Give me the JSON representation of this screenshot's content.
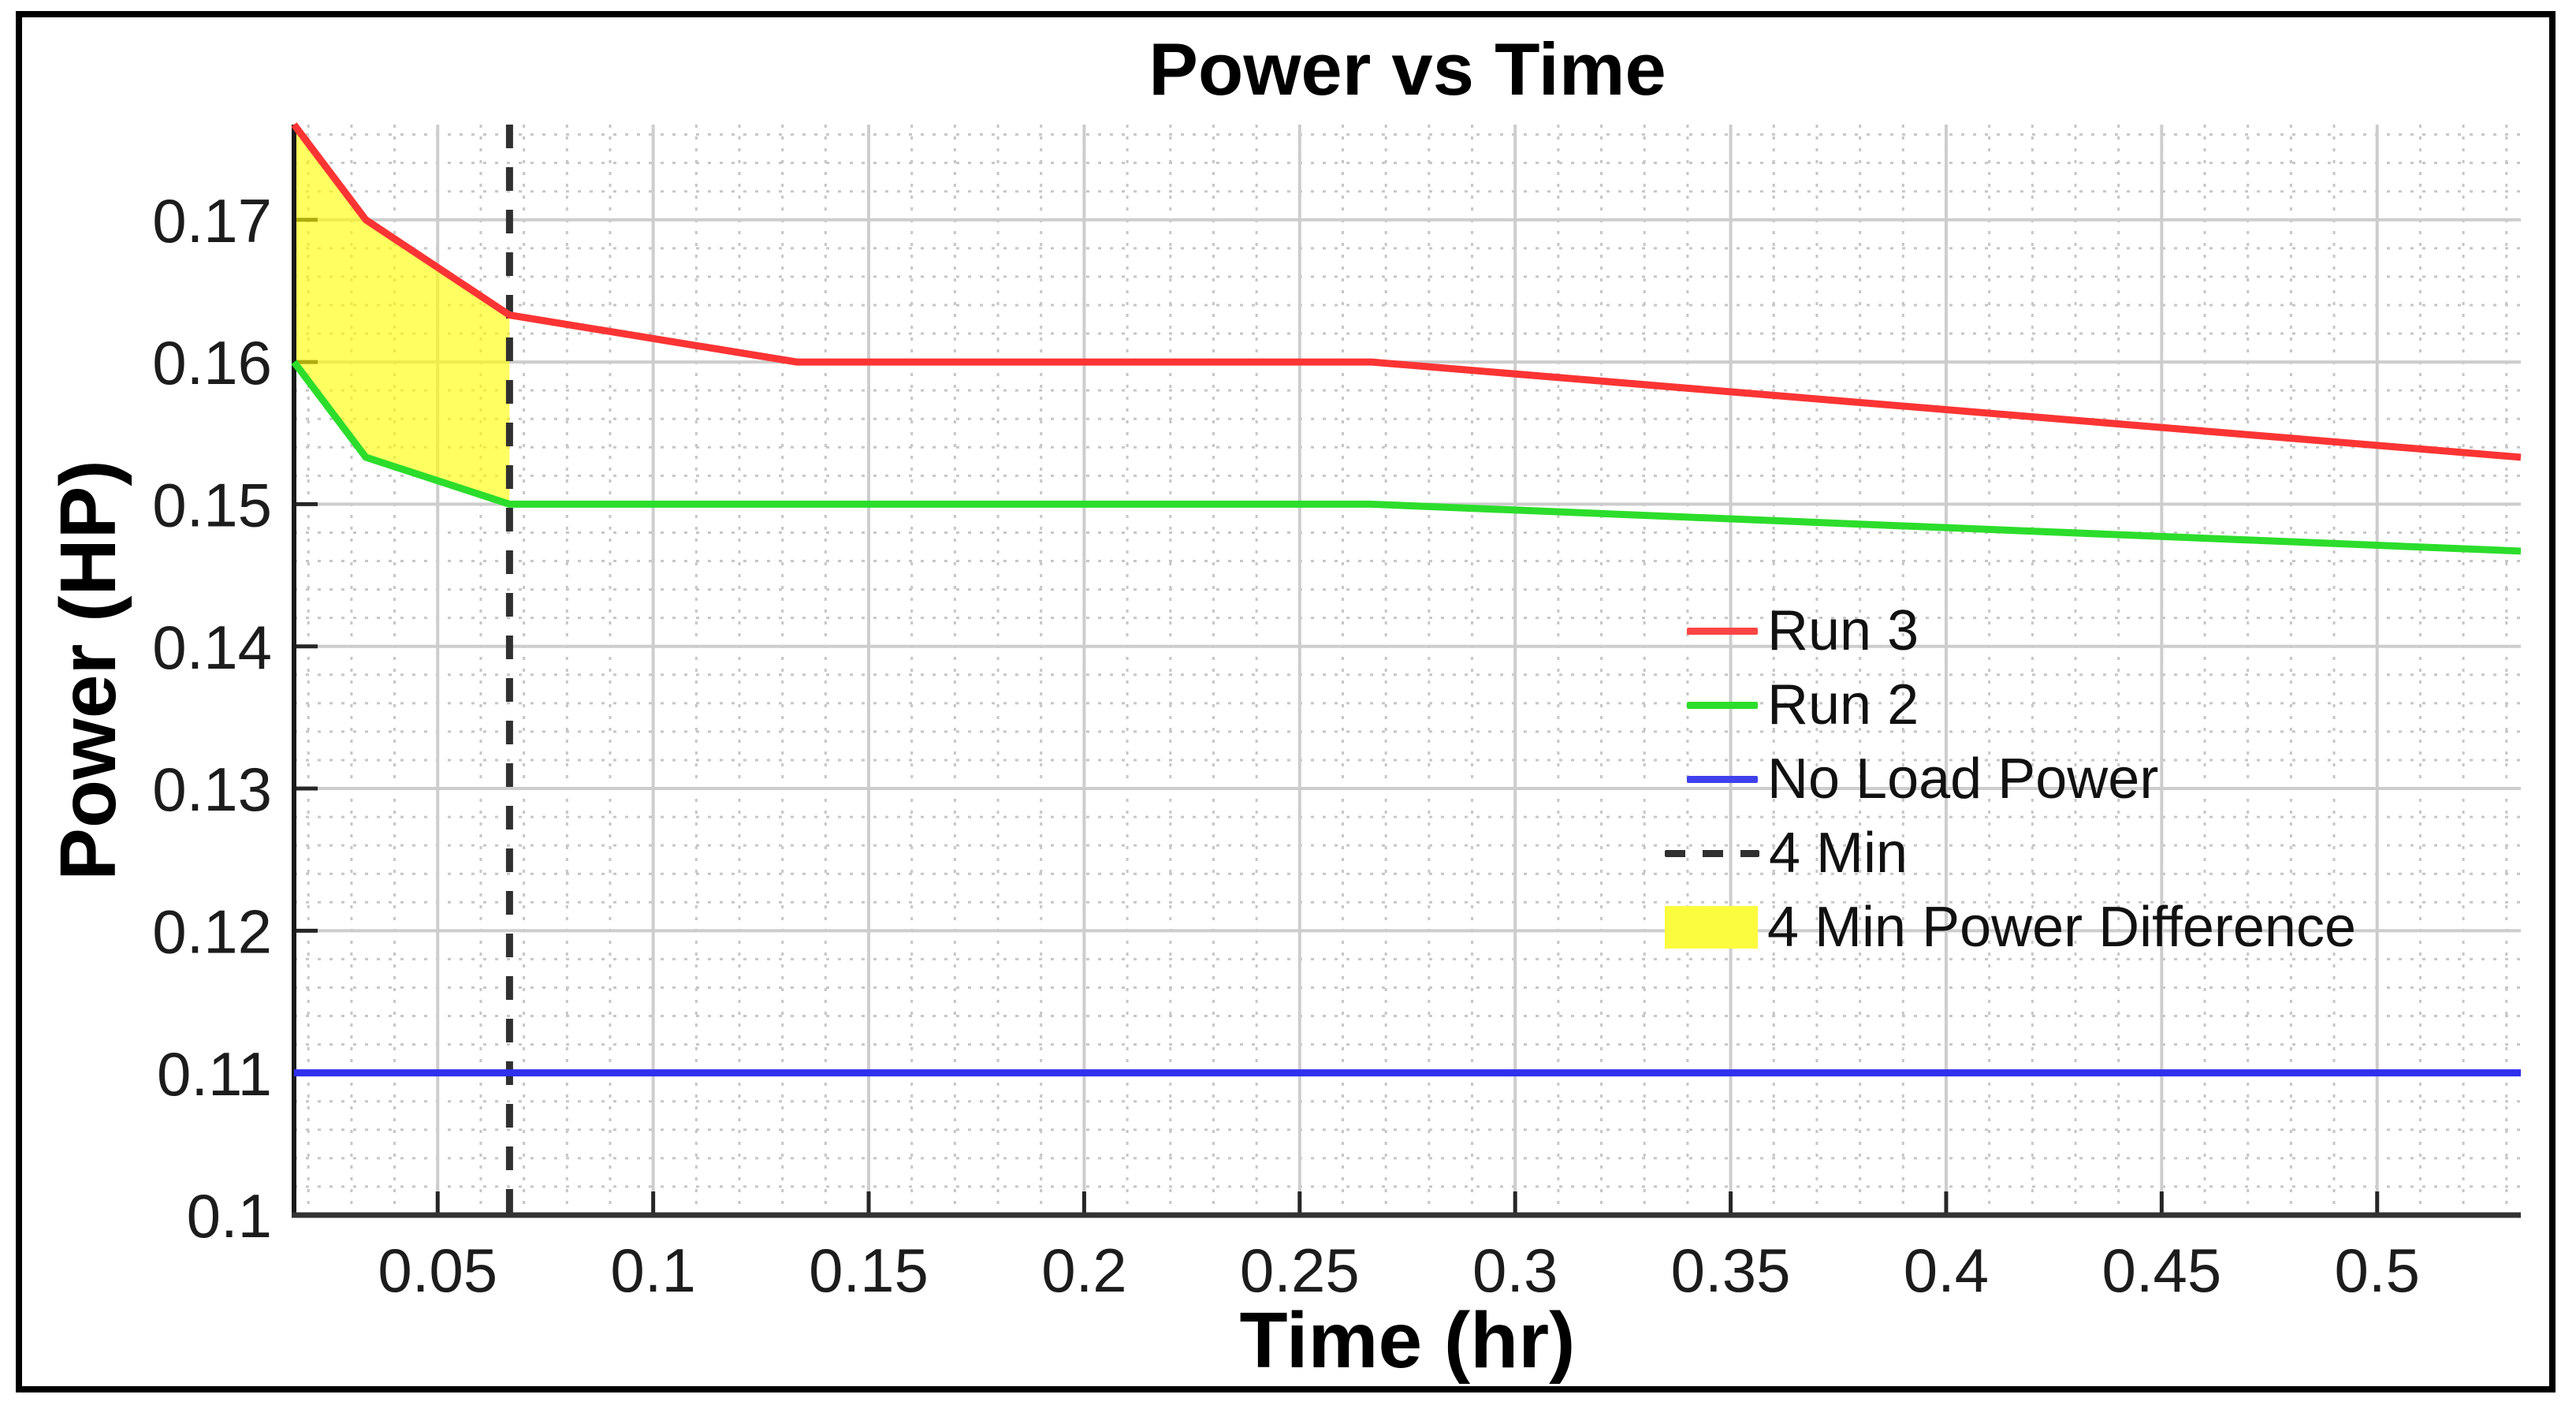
{
  "figure": {
    "background": "#ffffff",
    "border_color": "#000000"
  },
  "chart_data": {
    "type": "line",
    "title": "Power vs Time",
    "xlabel": "Time (hr)",
    "ylabel": "Power (HP)",
    "xlim": [
      0.016667,
      0.533333
    ],
    "ylim": [
      0.1,
      0.1767
    ],
    "grid": true,
    "minor_grid": true,
    "x_ticks": [
      0.05,
      0.1,
      0.15,
      0.2,
      0.25,
      0.3,
      0.35,
      0.4,
      0.45,
      0.5
    ],
    "x_tick_labels": [
      "0.05",
      "0.1",
      "0.15",
      "0.2",
      "0.25",
      "0.3",
      "0.35",
      "0.4",
      "0.45",
      "0.5"
    ],
    "y_ticks": [
      0.1,
      0.11,
      0.12,
      0.13,
      0.14,
      0.15,
      0.16,
      0.17
    ],
    "y_tick_labels": [
      "0.1",
      "0.11",
      "0.12",
      "0.13",
      "0.14",
      "0.15",
      "0.16",
      "0.17"
    ],
    "x_minor_step": 0.01,
    "y_minor_step": 0.002,
    "series": [
      {
        "name": "Run 3",
        "color": "#fb3434",
        "points": [
          [
            0.016667,
            0.1767
          ],
          [
            0.033333,
            0.17
          ],
          [
            0.066667,
            0.1633
          ],
          [
            0.133333,
            0.16
          ],
          [
            0.266667,
            0.16
          ],
          [
            0.533333,
            0.1533
          ]
        ]
      },
      {
        "name": "Run 2",
        "color": "#2cdd2c",
        "points": [
          [
            0.016667,
            0.16
          ],
          [
            0.033333,
            0.1533
          ],
          [
            0.066667,
            0.15
          ],
          [
            0.133333,
            0.15
          ],
          [
            0.266667,
            0.15
          ],
          [
            0.533333,
            0.1467
          ]
        ]
      },
      {
        "name": "No Load Power",
        "color": "#3030ee",
        "points": [
          [
            0.016667,
            0.11
          ],
          [
            0.533333,
            0.11
          ]
        ]
      }
    ],
    "vline": {
      "name": "4 Min",
      "x": 0.066667,
      "color": "#303030",
      "style": "dashed"
    },
    "region": {
      "name": "4 Min Power Difference",
      "color": "#ffff00",
      "opacity": 0.62,
      "x_range": [
        0.016667,
        0.066667
      ],
      "between": [
        "Run 3",
        "Run 2"
      ]
    },
    "legend": {
      "position": "center-right",
      "entries": [
        {
          "label": "Run 3",
          "swatch": "line",
          "color": "#fb4545"
        },
        {
          "label": "Run 2",
          "swatch": "line",
          "color": "#2cdd2c"
        },
        {
          "label": "No Load Power",
          "swatch": "line",
          "color": "#4040ee"
        },
        {
          "label": "4 Min",
          "swatch": "dashed-line",
          "color": "#303030"
        },
        {
          "label": "4 Min Power Difference",
          "swatch": "patch",
          "color": "#fcfc3e"
        }
      ]
    }
  }
}
